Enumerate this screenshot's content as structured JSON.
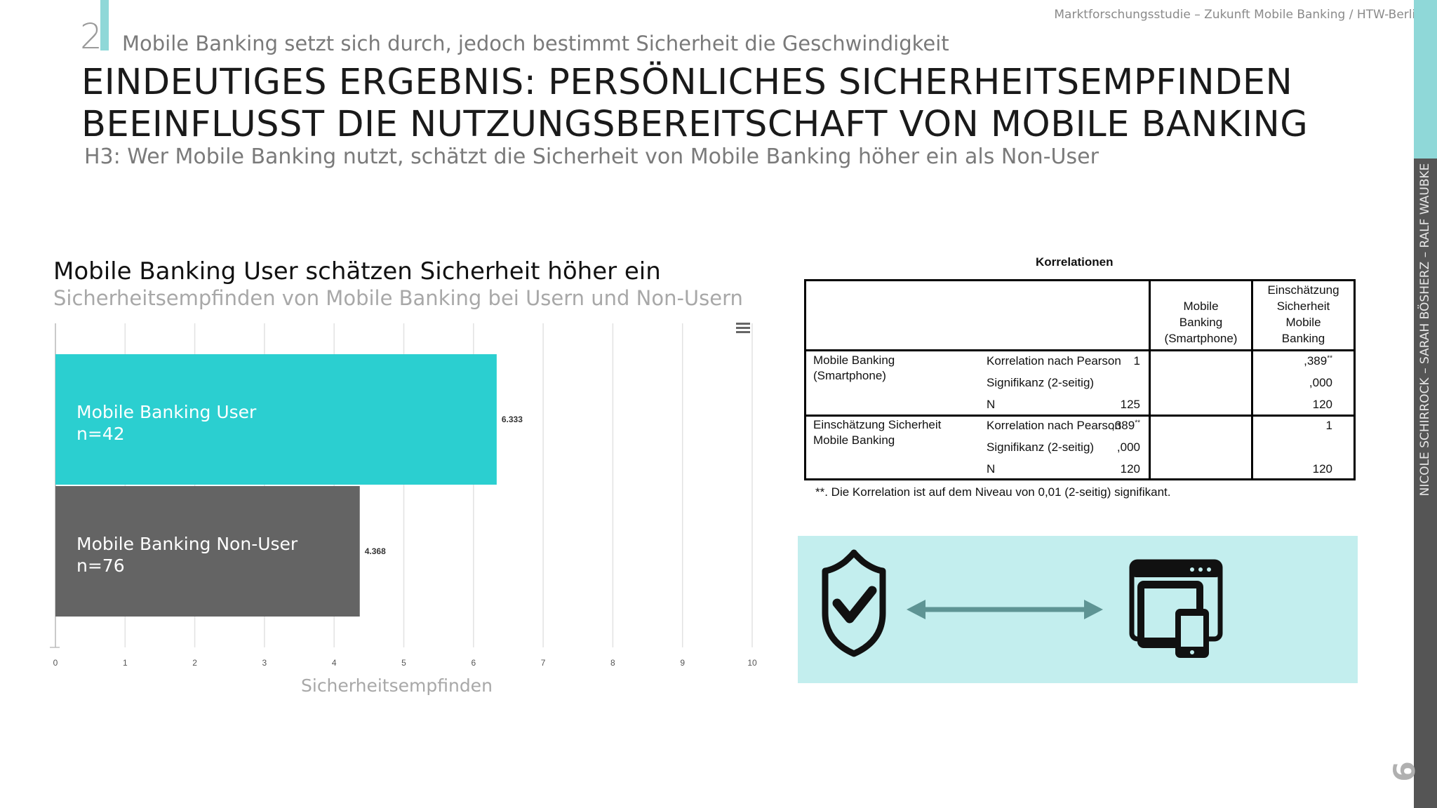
{
  "header": {
    "section_number": "2",
    "section_title": "Mobile Banking setzt sich durch, jedoch bestimmt Sicherheit die Geschwindigkeit",
    "meta": "Marktforschungsstudie – Zukunft Mobile Banking / HTW-Berlin",
    "headline_line1": "EINDEUTIGES ERGEBNIS: PERSÖNLICHES SICHERHEITSEMPFINDEN",
    "headline_line2": "BEEINFLUSST DIE NUTZUNGSBEREITSCHAFT VON MOBILE BANKING",
    "hypothesis": "H3: Wer Mobile Banking nutzt, schätzt die Sicherheit von Mobile Banking höher ein als Non-User"
  },
  "sidebar": {
    "authors": "NICOLE SCHIRROCK – SARAH BÖSHERZ – RALF WAUBKE",
    "page_number": "9"
  },
  "chart_data": {
    "type": "bar",
    "orientation": "horizontal",
    "title": "Mobile Banking User schätzen Sicherheit höher ein",
    "subtitle": "Sicherheitsempfinden von Mobile Banking bei Usern und Non-Usern",
    "xlabel": "Sicherheitsempfinden",
    "ylabel": "",
    "xlim": [
      0,
      10
    ],
    "ticks": [
      "0",
      "1",
      "2",
      "3",
      "4",
      "5",
      "6",
      "7",
      "8",
      "9",
      "10"
    ],
    "grid": true,
    "categories": [
      {
        "label": "Mobile Banking User",
        "n": "n=42",
        "value": 6.333,
        "value_label": "6.333",
        "color": "#2bcfd0"
      },
      {
        "label": "Mobile Banking Non-User",
        "n": "n=76",
        "value": 4.368,
        "value_label": "4.368",
        "color": "#646464"
      }
    ]
  },
  "table": {
    "title": "Korrelationen",
    "col1": [
      "Mobile",
      "Banking",
      "(Smartphone)"
    ],
    "col2": [
      "Einschätzung",
      "Sicherheit",
      "Mobile",
      "Banking"
    ],
    "groups": [
      {
        "name": [
          "Mobile Banking",
          "(Smartphone)"
        ],
        "rows": [
          {
            "stat": "Korrelation nach Pearson",
            "v1": "1",
            "v2": ",389",
            "v2_sup": "**"
          },
          {
            "stat": "Signifikanz (2-seitig)",
            "v1": "",
            "v2": ",000"
          },
          {
            "stat": "N",
            "v1": "125",
            "v2": "120"
          }
        ]
      },
      {
        "name": [
          "Einschätzung Sicherheit",
          "Mobile Banking"
        ],
        "rows": [
          {
            "stat": "Korrelation nach Pearson",
            "v1": ",389",
            "v1_sup": "**",
            "v2": "1"
          },
          {
            "stat": "Signifikanz (2-seitig)",
            "v1": ",000",
            "v2": ""
          },
          {
            "stat": "N",
            "v1": "120",
            "v2": "120"
          }
        ]
      }
    ],
    "footnote": "**. Die Korrelation ist auf dem Niveau von 0,01 (2-seitig) signifikant."
  },
  "colors": {
    "accent": "#8fd8d8",
    "bar_user": "#2bcfd0",
    "bar_nonuser": "#646464",
    "illustration_bg": "#c3eeee",
    "arrow": "#5e9494"
  },
  "icons": [
    "shield-check-icon",
    "double-arrow-icon",
    "devices-icon",
    "menu-icon"
  ]
}
